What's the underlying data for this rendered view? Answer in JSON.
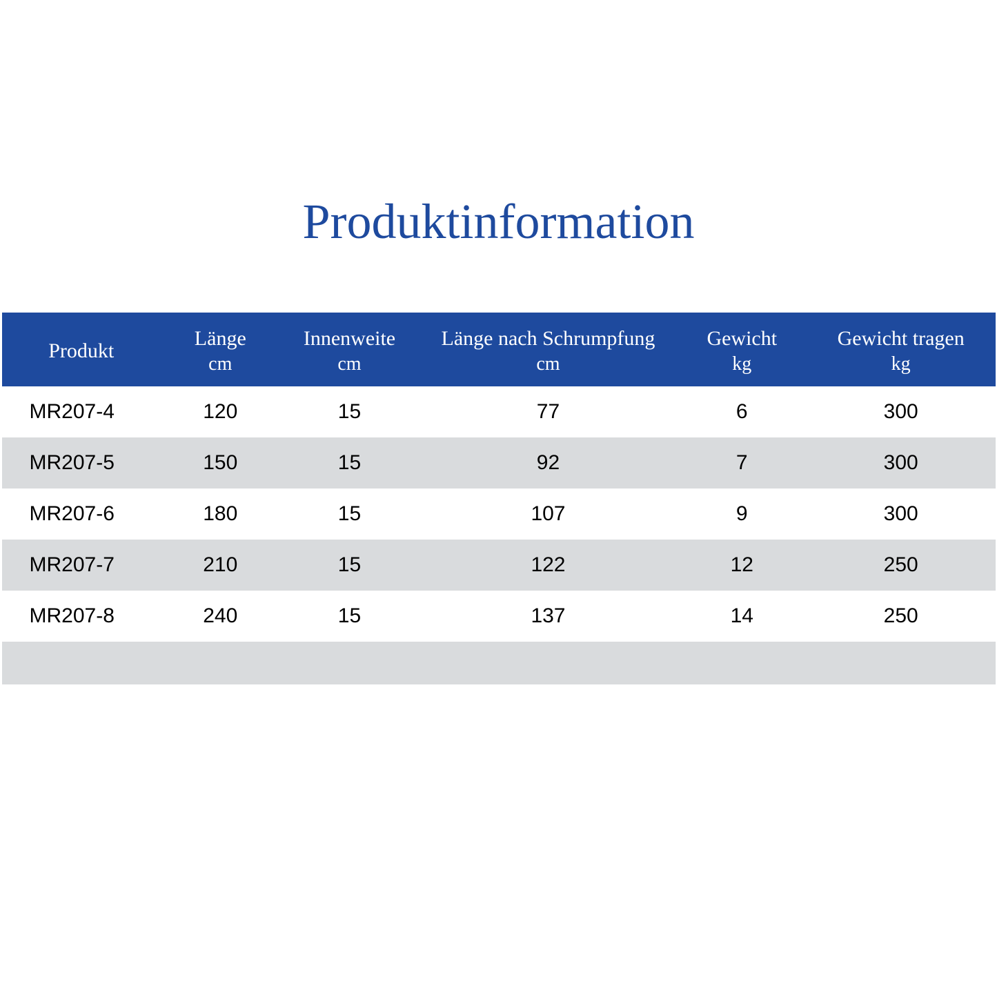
{
  "title": "Produktinformation",
  "table": {
    "type": "table",
    "columns": [
      {
        "label": "Produkt",
        "unit": ""
      },
      {
        "label": "Länge",
        "unit": "cm"
      },
      {
        "label": "Innenweite",
        "unit": "cm"
      },
      {
        "label": "Länge nach Schrumpfung",
        "unit": "cm"
      },
      {
        "label": "Gewicht",
        "unit": "kg"
      },
      {
        "label": "Gewicht tragen",
        "unit": "kg"
      }
    ],
    "rows": [
      [
        "MR207-4",
        "120",
        "15",
        "77",
        "6",
        "300"
      ],
      [
        "MR207-5",
        "150",
        "15",
        "92",
        "7",
        "300"
      ],
      [
        "MR207-6",
        "180",
        "15",
        "107",
        "9",
        "300"
      ],
      [
        "MR207-7",
        "210",
        "15",
        "122",
        "12",
        "250"
      ],
      [
        "MR207-8",
        "240",
        "15",
        "137",
        "14",
        "250"
      ]
    ],
    "header_bg_color": "#1e4a9e",
    "header_text_color": "#ffffff",
    "row_odd_bg": "#ffffff",
    "row_even_bg": "#d9dbdd",
    "title_color": "#1e4a9e",
    "title_fontsize": 72,
    "header_fontsize": 30,
    "cell_fontsize": 30,
    "column_widths_pct": [
      16,
      12,
      14,
      26,
      13,
      19
    ]
  }
}
